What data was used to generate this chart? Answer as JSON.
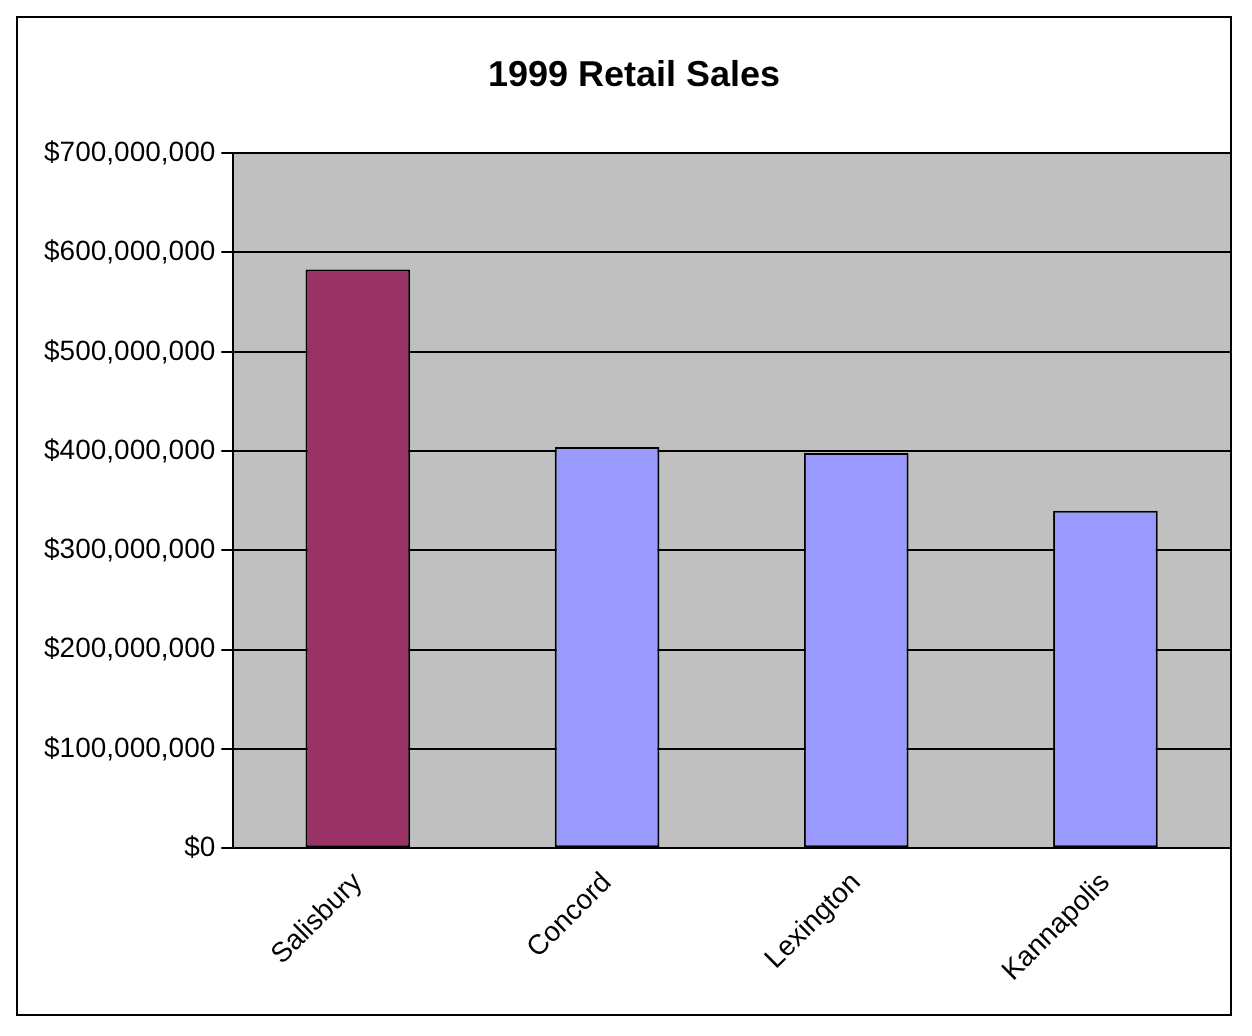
{
  "chart_data": {
    "type": "bar",
    "title": "1999 Retail Sales",
    "categories": [
      "Salisbury",
      "Concord",
      "Lexington",
      "Kannapolis"
    ],
    "values": [
      583000000,
      404000000,
      398000000,
      340000000
    ],
    "colors": [
      "#993366",
      "#9999ff",
      "#9999ff",
      "#9999ff"
    ],
    "ylim": [
      0,
      700000000
    ],
    "yticks": [
      {
        "value": 0,
        "label": "$0"
      },
      {
        "value": 100000000,
        "label": "$100,000,000"
      },
      {
        "value": 200000000,
        "label": "$200,000,000"
      },
      {
        "value": 300000000,
        "label": "$300,000,000"
      },
      {
        "value": 400000000,
        "label": "$400,000,000"
      },
      {
        "value": 500000000,
        "label": "$500,000,000"
      },
      {
        "value": 600000000,
        "label": "$600,000,000"
      },
      {
        "value": 700000000,
        "label": "$700,000,000"
      }
    ],
    "grid": "y",
    "legend": false
  }
}
